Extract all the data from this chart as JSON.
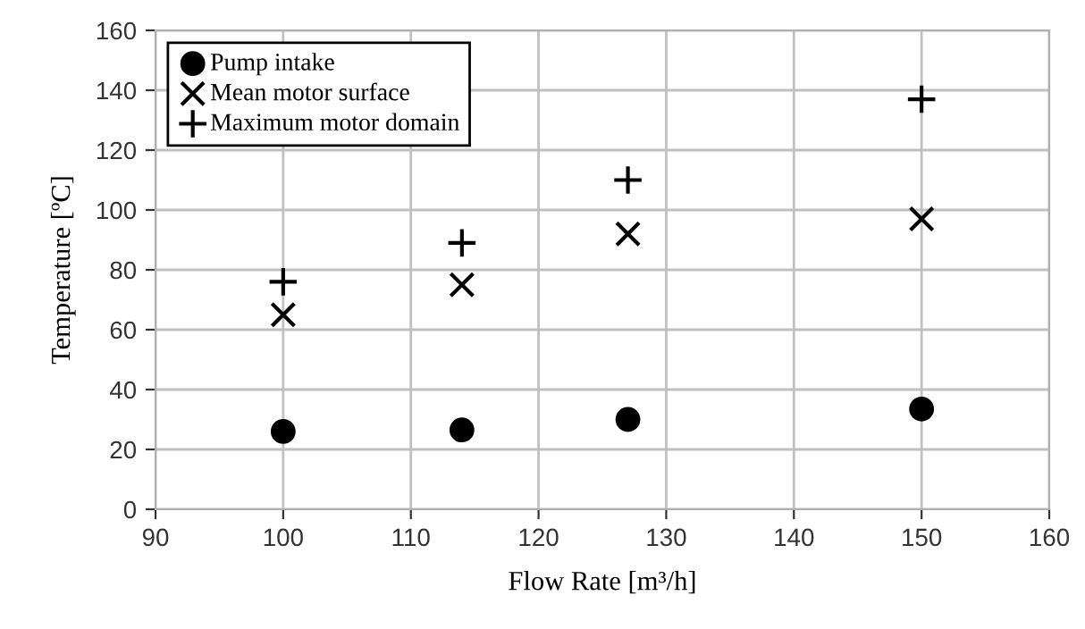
{
  "chart_data": {
    "type": "scatter",
    "xlabel": "Flow Rate [m³/h]",
    "ylabel": "Temperature [ºC]",
    "x": [
      100,
      114,
      127,
      150
    ],
    "series": [
      {
        "name": "Pump intake",
        "color": "#000000",
        "marker": "circle",
        "values": [
          26,
          26.5,
          30,
          33.5
        ]
      },
      {
        "name": "Mean motor surface",
        "color": "#000000",
        "marker": "cross",
        "values": [
          65,
          75,
          92,
          97
        ]
      },
      {
        "name": "Maximum motor domain",
        "color": "#000000",
        "marker": "plus",
        "values": [
          76,
          89,
          110,
          137
        ]
      }
    ],
    "xlim": [
      90,
      160
    ],
    "xticks": [
      90,
      100,
      110,
      120,
      130,
      140,
      150,
      160
    ],
    "ylim": [
      0,
      160
    ],
    "yticks": [
      0,
      20,
      40,
      60,
      80,
      100,
      120,
      140,
      160
    ],
    "grid": true,
    "legend": "top left"
  }
}
